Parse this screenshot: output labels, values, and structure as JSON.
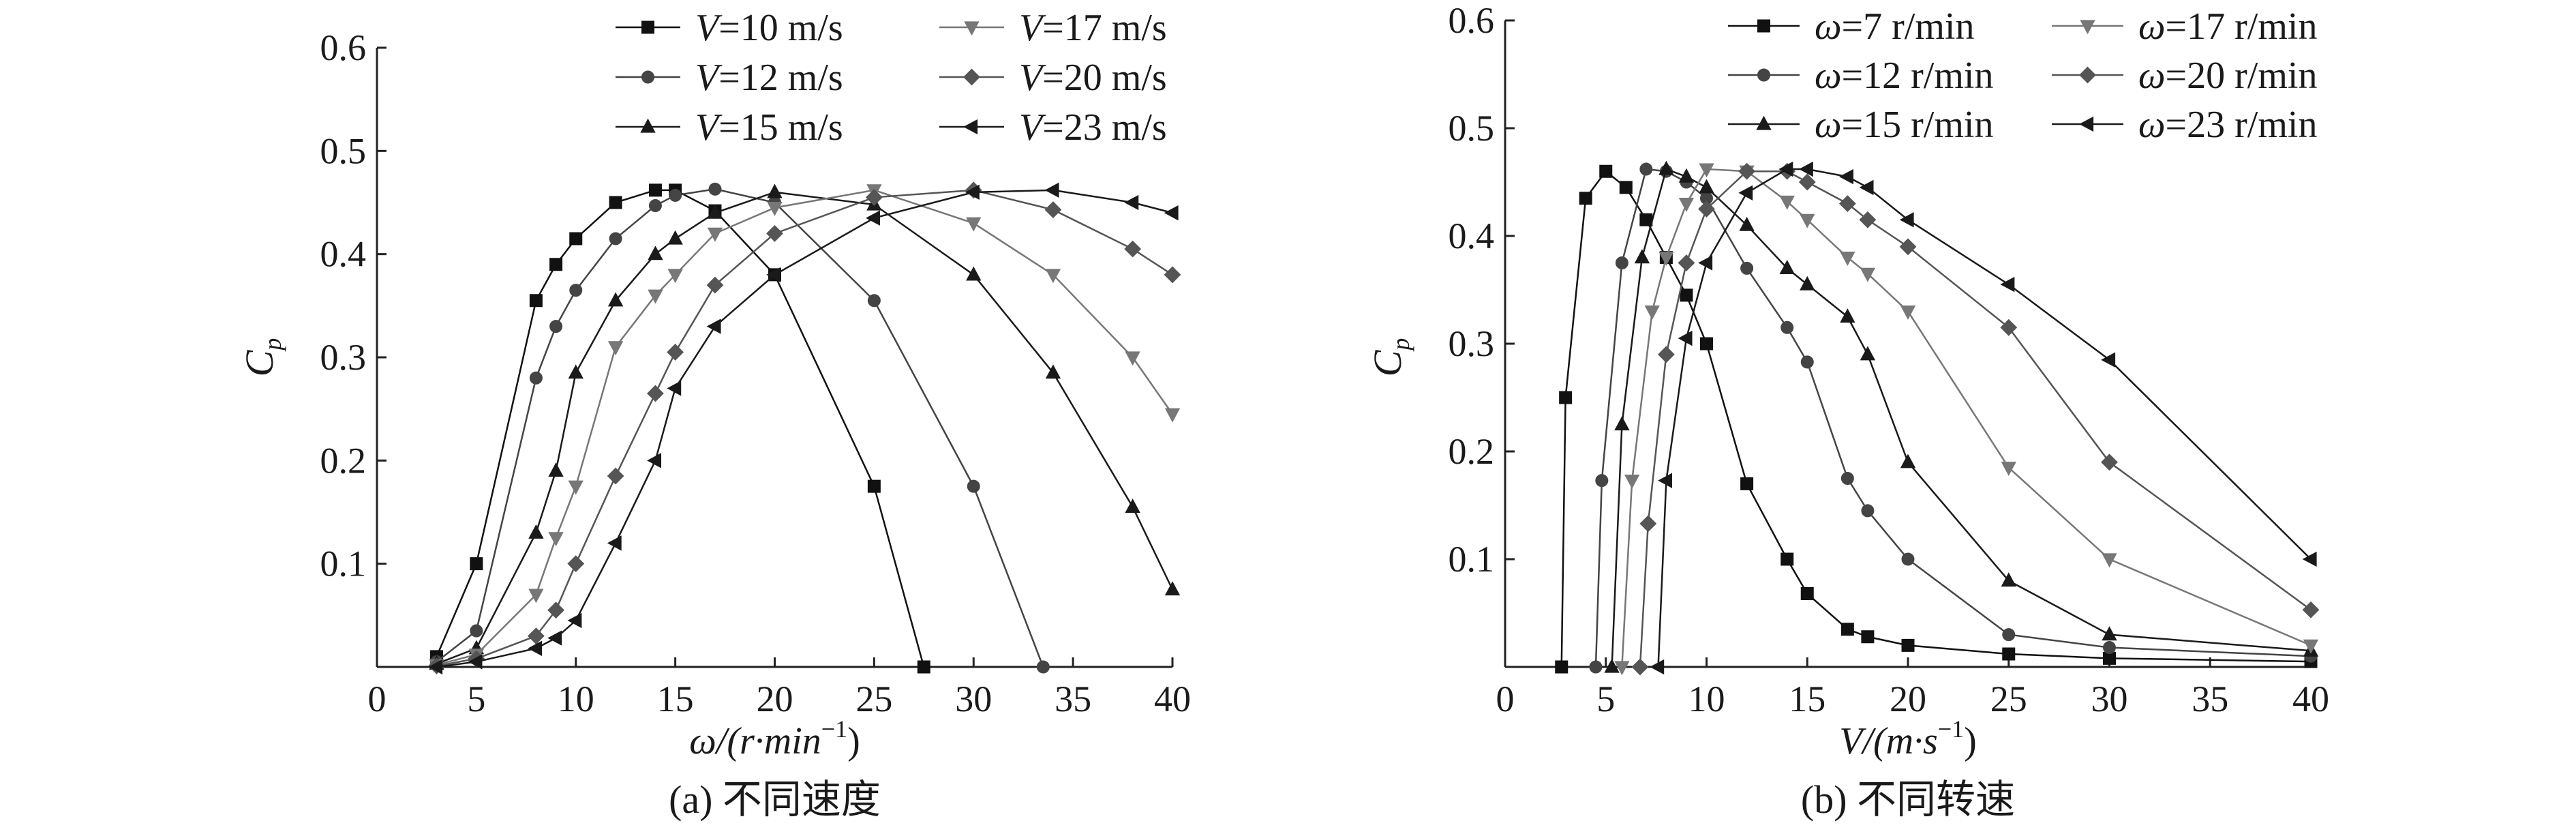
{
  "chart_data": [
    {
      "type": "line",
      "caption": "(a) 不同速度",
      "xlabel_main": "ω/(r·min",
      "xlabel_sup": "−1",
      "xlabel_end": ")",
      "ylabel_main": "C",
      "ylabel_sub": "p",
      "xlim": [
        0,
        40
      ],
      "ylim": [
        0,
        0.6
      ],
      "xticks": [
        "0",
        "5",
        "10",
        "15",
        "20",
        "25",
        "30",
        "35",
        "40"
      ],
      "yticks": [
        "0.1",
        "0.2",
        "0.3",
        "0.4",
        "0.5",
        "0.6"
      ],
      "legend_position": "top-right",
      "series": [
        {
          "name": "V=10 m/s",
          "var": "V",
          "rest": "=10 m/s",
          "marker": "square",
          "color": "#111111",
          "x": [
            3,
            5,
            8,
            9,
            10,
            12,
            14,
            15,
            17,
            20,
            25,
            27.5
          ],
          "y": [
            0.01,
            0.1,
            0.355,
            0.39,
            0.415,
            0.45,
            0.462,
            0.462,
            0.442,
            0.38,
            0.175,
            0.0
          ]
        },
        {
          "name": "V=12 m/s",
          "var": "V",
          "rest": "=12 m/s",
          "marker": "circle",
          "color": "#444444",
          "x": [
            3,
            5,
            8,
            9,
            10,
            12,
            14,
            15,
            17,
            20,
            25,
            30,
            33.5
          ],
          "y": [
            0.005,
            0.035,
            0.28,
            0.33,
            0.365,
            0.415,
            0.447,
            0.457,
            0.463,
            0.45,
            0.355,
            0.175,
            0.0
          ]
        },
        {
          "name": "V=15 m/s",
          "var": "V",
          "rest": "=15 m/s",
          "marker": "triangle-up",
          "color": "#1a1a1a",
          "x": [
            3,
            5,
            8,
            9,
            10,
            12,
            14,
            15,
            17,
            20,
            25,
            30,
            34,
            38,
            40
          ],
          "y": [
            0.003,
            0.018,
            0.13,
            0.19,
            0.285,
            0.355,
            0.4,
            0.415,
            0.44,
            0.46,
            0.448,
            0.38,
            0.285,
            0.155,
            0.075
          ]
        },
        {
          "name": "V=17 m/s",
          "var": "V",
          "rest": "=17 m/s",
          "marker": "triangle-down",
          "color": "#777777",
          "x": [
            3,
            5,
            8,
            9,
            10,
            12,
            14,
            15,
            17,
            20,
            25,
            30,
            34,
            38,
            40
          ],
          "y": [
            0.002,
            0.012,
            0.07,
            0.125,
            0.175,
            0.31,
            0.36,
            0.38,
            0.42,
            0.445,
            0.462,
            0.43,
            0.38,
            0.3,
            0.245
          ]
        },
        {
          "name": "V=20 m/s",
          "var": "V",
          "rest": "=20 m/s",
          "marker": "diamond",
          "color": "#555555",
          "x": [
            3,
            5,
            8,
            9,
            10,
            12,
            14,
            15,
            17,
            20,
            25,
            30,
            34,
            38,
            40
          ],
          "y": [
            0.001,
            0.008,
            0.03,
            0.055,
            0.1,
            0.185,
            0.265,
            0.305,
            0.37,
            0.42,
            0.455,
            0.462,
            0.443,
            0.405,
            0.38
          ]
        },
        {
          "name": "V=23 m/s",
          "var": "V",
          "rest": "=23 m/s",
          "marker": "triangle-left",
          "color": "#1a1a1a",
          "x": [
            3,
            5,
            8,
            9,
            10,
            12,
            14,
            15,
            17,
            20,
            25,
            30,
            34,
            38,
            40
          ],
          "y": [
            0.0,
            0.005,
            0.018,
            0.028,
            0.045,
            0.12,
            0.2,
            0.27,
            0.33,
            0.38,
            0.435,
            0.46,
            0.462,
            0.45,
            0.44
          ]
        }
      ]
    },
    {
      "type": "line",
      "caption": "(b) 不同转速",
      "xlabel_main": "V/(m·s",
      "xlabel_sup": "−1",
      "xlabel_end": ")",
      "ylabel_main": "C",
      "ylabel_sub": "p",
      "xlim": [
        0,
        40
      ],
      "ylim": [
        0,
        0.6
      ],
      "xticks": [
        "0",
        "5",
        "10",
        "15",
        "20",
        "25",
        "30",
        "35",
        "40"
      ],
      "yticks": [
        "0.1",
        "0.2",
        "0.3",
        "0.4",
        "0.5",
        "0.6"
      ],
      "legend_position": "top",
      "series": [
        {
          "name": "ω=7 r/min",
          "var": "ω",
          "rest": "=7 r/min",
          "marker": "square",
          "color": "#111111",
          "x": [
            2.8,
            3,
            4,
            5,
            6,
            7,
            8,
            9,
            10,
            12,
            14,
            15,
            17,
            18,
            20,
            25,
            30,
            40
          ],
          "y": [
            0.0,
            0.25,
            0.435,
            0.46,
            0.445,
            0.415,
            0.38,
            0.345,
            0.3,
            0.17,
            0.1,
            0.068,
            0.035,
            0.028,
            0.02,
            0.012,
            0.008,
            0.005
          ]
        },
        {
          "name": "ω=12 r/min",
          "var": "ω",
          "rest": "=12 r/min",
          "marker": "circle",
          "color": "#444444",
          "x": [
            4.5,
            4.8,
            5.8,
            7,
            8,
            9,
            10,
            12,
            14,
            15,
            17,
            18,
            20,
            25,
            30,
            40
          ],
          "y": [
            0.0,
            0.173,
            0.375,
            0.462,
            0.46,
            0.45,
            0.435,
            0.37,
            0.315,
            0.283,
            0.175,
            0.145,
            0.1,
            0.03,
            0.018,
            0.01
          ]
        },
        {
          "name": "ω=15 r/min",
          "var": "ω",
          "rest": "=15 r/min",
          "marker": "triangle-up",
          "color": "#1a1a1a",
          "x": [
            5.3,
            5.8,
            6.8,
            8,
            9,
            10,
            12,
            14,
            15,
            17,
            18,
            20,
            25,
            30,
            40
          ],
          "y": [
            0.0,
            0.225,
            0.38,
            0.462,
            0.455,
            0.445,
            0.41,
            0.37,
            0.355,
            0.325,
            0.29,
            0.19,
            0.08,
            0.03,
            0.015
          ]
        },
        {
          "name": "ω=17 r/min",
          "var": "ω",
          "rest": "=17 r/min",
          "marker": "triangle-down",
          "color": "#777777",
          "x": [
            5.8,
            6.3,
            7.3,
            8,
            9,
            10,
            12,
            14,
            15,
            17,
            18,
            20,
            25,
            30,
            40
          ],
          "y": [
            0.0,
            0.173,
            0.33,
            0.38,
            0.43,
            0.462,
            0.46,
            0.432,
            0.415,
            0.38,
            0.365,
            0.33,
            0.185,
            0.1,
            0.02
          ]
        },
        {
          "name": "ω=20 r/min",
          "var": "ω",
          "rest": "=20 r/min",
          "marker": "diamond",
          "color": "#555555",
          "x": [
            6.7,
            7.1,
            8,
            9,
            10,
            12,
            14,
            15,
            17,
            18,
            20,
            25,
            30,
            40
          ],
          "y": [
            0.0,
            0.133,
            0.29,
            0.375,
            0.425,
            0.46,
            0.46,
            0.45,
            0.43,
            0.415,
            0.39,
            0.315,
            0.19,
            0.053
          ]
        },
        {
          "name": "ω=23 r/min",
          "var": "ω",
          "rest": "=23 r/min",
          "marker": "triangle-left",
          "color": "#1a1a1a",
          "x": [
            7.6,
            8,
            9,
            10,
            12,
            14,
            15,
            17,
            18,
            20,
            25,
            30,
            40
          ],
          "y": [
            0.0,
            0.173,
            0.305,
            0.375,
            0.44,
            0.462,
            0.462,
            0.455,
            0.445,
            0.415,
            0.355,
            0.285,
            0.1
          ]
        }
      ]
    }
  ]
}
